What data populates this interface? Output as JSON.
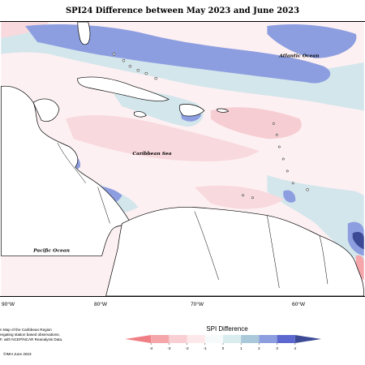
{
  "title": "SPI24 Difference between May 2023 and June 2023",
  "ocean_labels": {
    "atlantic": "Atlantic Ocean",
    "caribbean": "Caribbean Sea",
    "pacific": "Pacific Ocean"
  },
  "longitude_labels": [
    "90°W",
    "80°W",
    "70°W",
    "60°W"
  ],
  "credit_text": {
    "line1": "n Map of the Caribbean Region",
    "line2": "regating station based observations,",
    "line3": "F, with NCEP/NCAR Reanalysis Data."
  },
  "copyright": "©IMH June 2023",
  "legend": {
    "title": "SPI Difference",
    "ticks": [
      "-4",
      "-3",
      "-2",
      "-1",
      "0",
      "1",
      "2",
      "3",
      "4"
    ],
    "colors": [
      "#ef7f84",
      "#f4a6ab",
      "#f8cfd2",
      "#fde8ea",
      "#f7fafb",
      "#d9ecee",
      "#a9c8da",
      "#8d9ee0",
      "#5c68cf",
      "#3c4a96"
    ]
  },
  "map_colors": {
    "ocean": "#fdf0f2",
    "land": "#ffffff",
    "coast": "#000000"
  }
}
